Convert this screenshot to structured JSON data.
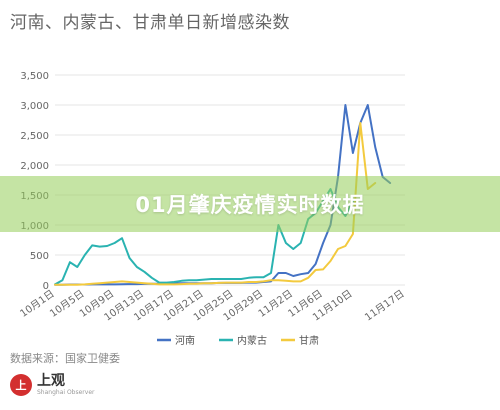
{
  "title": "河南、内蒙古、甘肃单日新增感染数",
  "overlay_text": "01月肇庆疫情实时数据",
  "source": "数据来源：国家卫健委",
  "logo": {
    "mark": "上",
    "name": "上观",
    "sub": "Shanghai Observer"
  },
  "colors": {
    "henan": "#4472c4",
    "neimenggu": "#2ab3b1",
    "gansu": "#f3ca3e",
    "grid": "#e6e6e6",
    "axis_text": "#666666"
  },
  "chart_data": {
    "type": "line",
    "title": "河南、内蒙古、甘肃单日新增感染数",
    "xlabel": "",
    "ylabel": "",
    "ylim": [
      0,
      3500
    ],
    "yticks": [
      0,
      500,
      1000,
      1500,
      2000,
      2500,
      3000,
      3500
    ],
    "ytick_labels": [
      "0",
      "500",
      "1,000",
      "1,500",
      "2,000",
      "2,500",
      "3,000",
      "3,500"
    ],
    "x": [
      "10月1日",
      "10月2日",
      "10月3日",
      "10月4日",
      "10月5日",
      "10月6日",
      "10月7日",
      "10月8日",
      "10月9日",
      "10月10日",
      "10月11日",
      "10月12日",
      "10月13日",
      "10月14日",
      "10月15日",
      "10月16日",
      "10月17日",
      "10月18日",
      "10月19日",
      "10月20日",
      "10月21日",
      "10月22日",
      "10月23日",
      "10月24日",
      "10月25日",
      "10月26日",
      "10月27日",
      "10月28日",
      "10月29日",
      "10月30日",
      "10月31日",
      "11月1日",
      "11月2日",
      "11月3日",
      "11月4日",
      "11月5日",
      "11月6日",
      "11月7日",
      "11月8日",
      "11月9日",
      "11月10日",
      "11月11日",
      "11月12日",
      "11月13日",
      "11月14日",
      "11月15日",
      "11月16日",
      "11月17日"
    ],
    "xtick_labels": [
      "10月1日",
      "10月5日",
      "10月9日",
      "10月13日",
      "10月17日",
      "10月21日",
      "10月25日",
      "10月29日",
      "11月2日",
      "11月6日",
      "11月10日",
      "11月17日"
    ],
    "grid": true,
    "legend_position": "bottom",
    "series": [
      {
        "name": "河南",
        "color": "#4472c4",
        "values": [
          5,
          5,
          8,
          8,
          8,
          10,
          10,
          10,
          10,
          12,
          15,
          15,
          18,
          20,
          20,
          25,
          30,
          30,
          30,
          30,
          30,
          30,
          35,
          35,
          35,
          35,
          40,
          40,
          50,
          60,
          200,
          200,
          150,
          180,
          200,
          350,
          700,
          1000,
          1800,
          3000,
          2200,
          2700,
          3000,
          2300,
          1800,
          1700,
          null,
          null
        ]
      },
      {
        "name": "内蒙古",
        "color": "#2ab3b1",
        "values": [
          10,
          80,
          380,
          300,
          500,
          660,
          640,
          650,
          700,
          780,
          450,
          300,
          220,
          120,
          40,
          40,
          50,
          70,
          80,
          80,
          90,
          100,
          100,
          100,
          100,
          100,
          120,
          130,
          130,
          200,
          1000,
          700,
          600,
          700,
          1100,
          1200,
          1400,
          1600,
          1300,
          1150,
          1400,
          null,
          null,
          null,
          null,
          null,
          null,
          null
        ]
      },
      {
        "name": "甘肃",
        "color": "#f3ca3e",
        "values": [
          5,
          5,
          5,
          5,
          10,
          20,
          30,
          40,
          50,
          60,
          50,
          40,
          30,
          20,
          10,
          10,
          10,
          15,
          20,
          20,
          30,
          30,
          35,
          40,
          40,
          40,
          50,
          50,
          60,
          80,
          80,
          70,
          60,
          60,
          120,
          250,
          260,
          400,
          600,
          650,
          850,
          2700,
          1600,
          1700,
          null,
          null,
          null,
          null
        ]
      }
    ]
  }
}
